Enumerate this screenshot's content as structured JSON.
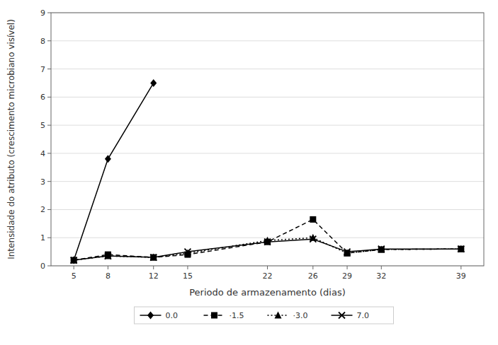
{
  "chart_data": {
    "type": "line",
    "x_label": "Periodo de armazenamento (dias)",
    "y_label": "Intensidade do atributo (crescimento microbiano visível)",
    "xlim": [
      3,
      41
    ],
    "xticks": [
      5,
      8,
      12,
      15,
      22,
      26,
      29,
      32,
      39
    ],
    "ylim": [
      0,
      9
    ],
    "yticks": [
      0,
      1,
      2,
      3,
      4,
      5,
      6,
      7,
      8,
      9
    ],
    "grid": true,
    "legend": "bottom",
    "series": [
      {
        "name": "0.0",
        "color": "#000000",
        "marker": "diamond",
        "line_style": "solid",
        "x": [
          5,
          8,
          12
        ],
        "values": [
          0.2,
          3.8,
          6.5
        ]
      },
      {
        "name": "·1.5",
        "color": "#000000",
        "marker": "square",
        "line_style": "dashed",
        "x": [
          5,
          8,
          12,
          15,
          22,
          26,
          29,
          32,
          39
        ],
        "values": [
          0.2,
          0.4,
          0.3,
          0.4,
          0.85,
          1.65,
          0.45,
          0.58,
          0.6
        ]
      },
      {
        "name": "·3.0",
        "color": "#000000",
        "marker": "triangle",
        "line_style": "dotted",
        "x": [
          5,
          8,
          12,
          15,
          22,
          26,
          29,
          32,
          39
        ],
        "values": [
          0.2,
          0.35,
          0.3,
          0.45,
          0.9,
          1.0,
          0.45,
          0.58,
          0.6
        ]
      },
      {
        "name": "7.0",
        "color": "#000000",
        "marker": "x",
        "line_style": "solid",
        "x": [
          5,
          8,
          12,
          15,
          22,
          26,
          29,
          32,
          39
        ],
        "values": [
          0.2,
          0.35,
          0.3,
          0.5,
          0.85,
          0.95,
          0.5,
          0.6,
          0.6
        ]
      }
    ]
  }
}
